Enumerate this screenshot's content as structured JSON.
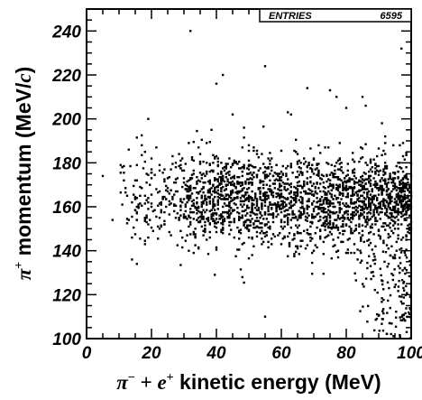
{
  "chart_data": {
    "type": "scatter",
    "xlabel": {
      "pi": "π",
      "minus": "−",
      "plus_op": " + ",
      "e": "e",
      "plus": "+",
      "rest": " kinetic energy (MeV)"
    },
    "ylabel": {
      "pi": "π",
      "plus": "+",
      "rest": " momentum (MeV/",
      "c": "c",
      "close": ")"
    },
    "xlim": [
      0,
      100
    ],
    "ylim": [
      100,
      250
    ],
    "x_ticks": [
      "0",
      "20",
      "40",
      "60",
      "80",
      "100"
    ],
    "y_ticks": [
      "100",
      "120",
      "140",
      "160",
      "180",
      "200",
      "220",
      "240"
    ],
    "stats_box": {
      "label": "ENTRIES",
      "value": "6595"
    },
    "distribution": {
      "core": {
        "x_range": [
          10,
          100
        ],
        "y_center": 163,
        "y_sigma": 10
      },
      "low_momentum_tail": {
        "x_range": [
          80,
          100
        ],
        "y_range": [
          100,
          140
        ]
      }
    },
    "sparse_points": [
      [
        32,
        240
      ],
      [
        97,
        232
      ],
      [
        42,
        220
      ],
      [
        40,
        216
      ],
      [
        55,
        224
      ],
      [
        68,
        214
      ],
      [
        75,
        213
      ],
      [
        77,
        210
      ],
      [
        85,
        210
      ],
      [
        19,
        200
      ],
      [
        45,
        202
      ],
      [
        91,
        198
      ],
      [
        86,
        206
      ],
      [
        62,
        203
      ],
      [
        63,
        202
      ],
      [
        80,
        205
      ],
      [
        13,
        186
      ],
      [
        17,
        188
      ],
      [
        14,
        136
      ],
      [
        8,
        154
      ],
      [
        5,
        174
      ],
      [
        55,
        110
      ],
      [
        48,
        128
      ],
      [
        100,
        150
      ]
    ]
  }
}
